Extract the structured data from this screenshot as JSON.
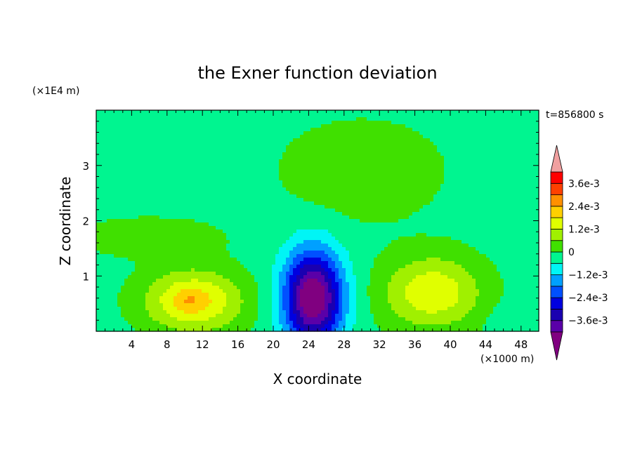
{
  "chart_data": {
    "type": "heatmap",
    "title": "the Exner function deviation",
    "xlabel": "X coordinate",
    "ylabel": "Z coordinate",
    "x_unit": "(×1000 m)",
    "y_unit": "(×1E4 m)",
    "time_label": "t=856800 s",
    "xlim": [
      0,
      50
    ],
    "ylim": [
      0,
      4
    ],
    "x_ticks": [
      4,
      8,
      12,
      16,
      20,
      24,
      28,
      32,
      36,
      40,
      44,
      48
    ],
    "y_ticks": [
      1,
      2,
      3
    ],
    "colorbar": {
      "levels": [
        -0.0042,
        -0.0036,
        -0.003,
        -0.0024,
        -0.0018,
        -0.0012,
        -0.0006,
        0,
        0.0006,
        0.0012,
        0.0018,
        0.0024,
        0.003,
        0.0036,
        0.0042
      ],
      "colors": [
        "#800080",
        "#5a00a8",
        "#1a00b0",
        "#0000e0",
        "#0050ff",
        "#00a0ff",
        "#00f5f5",
        "#00f590",
        "#40e000",
        "#a0f000",
        "#e0ff00",
        "#ffd000",
        "#ff9000",
        "#ff4000",
        "#ff0000",
        "#f0a0a0"
      ],
      "tick_values": [
        0.0036,
        0.0024,
        0.0012,
        0,
        -0.0012,
        -0.0024,
        -0.0036
      ],
      "tick_labels": [
        "3.6e-3",
        "2.4e-3",
        "1.2e-3",
        "0",
        "−1.2e-3",
        "−2.4e-3",
        "−3.6e-3"
      ]
    },
    "field": {
      "background": -0.0002,
      "features": [
        {
          "x": 30,
          "z": 2.9,
          "sx": 9,
          "sz": 0.9,
          "amp": 0.0006
        },
        {
          "x": 6,
          "z": 1.7,
          "sx": 8,
          "sz": 0.35,
          "amp": 0.0006
        },
        {
          "x": 11,
          "z": 0.55,
          "sx": 5.5,
          "sz": 0.55,
          "amp": 0.0022
        },
        {
          "x": 10.5,
          "z": 0.55,
          "sx": 1.6,
          "sz": 0.18,
          "amp": 0.0005
        },
        {
          "x": 24.5,
          "z": 0.6,
          "sx": 3.3,
          "sz": 0.85,
          "amp": -0.0048
        },
        {
          "x": 38,
          "z": 0.7,
          "sx": 5.5,
          "sz": 0.65,
          "amp": 0.0019
        },
        {
          "x": 47,
          "z": 2.5,
          "sx": 3,
          "sz": 0.8,
          "amp": -0.0003
        },
        {
          "x": 47,
          "z": 0.2,
          "sx": 2.5,
          "sz": 0.3,
          "amp": -0.0004
        }
      ]
    }
  }
}
